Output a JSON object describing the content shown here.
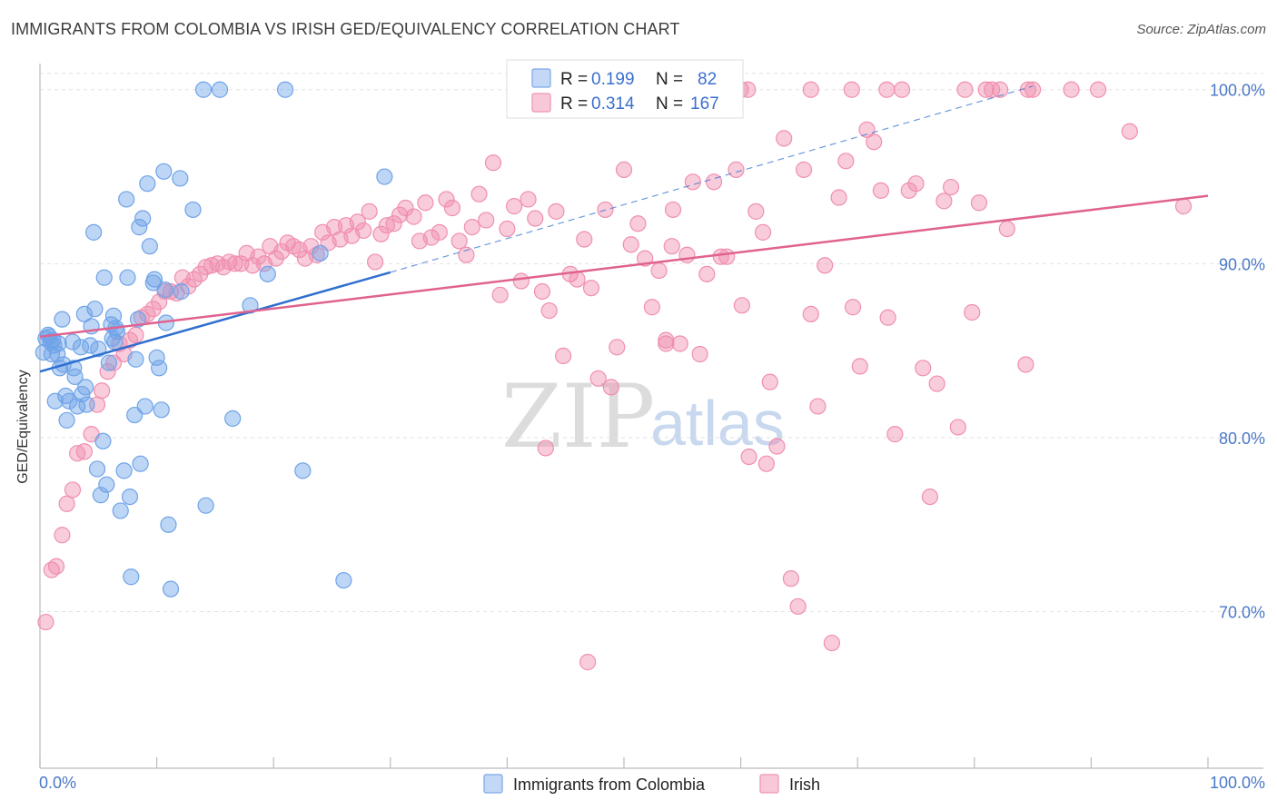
{
  "header": {
    "title": "IMMIGRANTS FROM COLOMBIA VS IRISH GED/EQUIVALENCY CORRELATION CHART",
    "source": "Source: ZipAtlas.com"
  },
  "watermark": {
    "zip": "ZIP",
    "atlas": "atlas"
  },
  "legend_top": {
    "rows": [
      {
        "r_label": "R = ",
        "r_value": "0.199",
        "n_label": "N = ",
        "n_value": "82"
      },
      {
        "r_label": "R = ",
        "r_value": "0.314",
        "n_label": "N = ",
        "n_value": "167"
      }
    ]
  },
  "chart_data": {
    "type": "scatter",
    "title": "IMMIGRANTS FROM COLOMBIA VS IRISH GED/EQUIVALENCY CORRELATION CHART",
    "xlabel": "",
    "ylabel": "GED/Equivalency",
    "xlim": [
      0,
      100
    ],
    "ylim": [
      61,
      101.5
    ],
    "x_tick_labels": [
      "0.0%",
      "100.0%"
    ],
    "y_ticks": [
      70,
      80,
      90,
      100
    ],
    "y_tick_labels": [
      "70.0%",
      "80.0%",
      "90.0%",
      "100.0%"
    ],
    "grid": true,
    "colors": {
      "colombia": "#6fa3e8",
      "irish": "#f08fb0",
      "colombia_line": "#2f6fcf",
      "irish_line": "#e0628f"
    },
    "series": [
      {
        "name": "Immigrants from Colombia",
        "r": 0.199,
        "n": 82,
        "trend": {
          "x": [
            0,
            30
          ],
          "y": [
            83.8,
            89.5
          ]
        },
        "trend_extension": {
          "x": [
            30,
            85
          ],
          "y": [
            89.5,
            100.2
          ]
        },
        "points": [
          [
            0.3,
            84.9
          ],
          [
            0.5,
            85.7
          ],
          [
            0.7,
            85.9
          ],
          [
            0.9,
            85.5
          ],
          [
            1.0,
            84.8
          ],
          [
            1.1,
            85.6
          ],
          [
            1.3,
            82.1
          ],
          [
            1.5,
            84.8
          ],
          [
            1.6,
            85.4
          ],
          [
            1.7,
            84.0
          ],
          [
            1.9,
            86.8
          ],
          [
            2.0,
            84.2
          ],
          [
            2.2,
            82.4
          ],
          [
            2.3,
            81.0
          ],
          [
            2.5,
            82.1
          ],
          [
            2.8,
            85.5
          ],
          [
            2.9,
            84.0
          ],
          [
            3.0,
            83.5
          ],
          [
            3.2,
            81.8
          ],
          [
            3.5,
            85.2
          ],
          [
            3.6,
            82.5
          ],
          [
            3.8,
            87.1
          ],
          [
            3.9,
            82.9
          ],
          [
            4.0,
            81.9
          ],
          [
            4.3,
            85.3
          ],
          [
            4.4,
            86.4
          ],
          [
            4.6,
            91.8
          ],
          [
            4.7,
            87.4
          ],
          [
            4.9,
            78.2
          ],
          [
            5.0,
            85.1
          ],
          [
            5.2,
            76.7
          ],
          [
            5.4,
            79.8
          ],
          [
            5.5,
            89.2
          ],
          [
            5.7,
            77.3
          ],
          [
            5.9,
            84.3
          ],
          [
            6.1,
            86.5
          ],
          [
            6.2,
            85.7
          ],
          [
            6.3,
            87.0
          ],
          [
            6.4,
            85.5
          ],
          [
            6.5,
            86.3
          ],
          [
            6.6,
            86.1
          ],
          [
            6.9,
            75.8
          ],
          [
            7.2,
            78.1
          ],
          [
            7.4,
            93.7
          ],
          [
            7.5,
            89.2
          ],
          [
            7.7,
            76.6
          ],
          [
            7.8,
            72.0
          ],
          [
            8.1,
            81.3
          ],
          [
            8.2,
            84.5
          ],
          [
            8.4,
            86.8
          ],
          [
            8.5,
            92.1
          ],
          [
            8.6,
            78.5
          ],
          [
            8.8,
            92.6
          ],
          [
            9.0,
            81.8
          ],
          [
            9.2,
            94.6
          ],
          [
            9.4,
            91.0
          ],
          [
            9.7,
            88.9
          ],
          [
            9.8,
            89.1
          ],
          [
            10.0,
            84.6
          ],
          [
            10.2,
            84.0
          ],
          [
            10.4,
            81.6
          ],
          [
            10.6,
            95.3
          ],
          [
            10.7,
            88.5
          ],
          [
            10.8,
            86.6
          ],
          [
            11.0,
            75.0
          ],
          [
            11.2,
            71.3
          ],
          [
            12.0,
            94.9
          ],
          [
            12.1,
            88.4
          ],
          [
            13.1,
            93.1
          ],
          [
            14.2,
            76.1
          ],
          [
            14.0,
            100.0
          ],
          [
            15.4,
            100.0
          ],
          [
            16.5,
            81.1
          ],
          [
            18.0,
            87.6
          ],
          [
            19.5,
            89.4
          ],
          [
            21.0,
            100.0
          ],
          [
            22.5,
            78.1
          ],
          [
            24.0,
            90.6
          ],
          [
            26.0,
            71.8
          ],
          [
            29.5,
            95.0
          ],
          [
            0.8,
            85.8
          ],
          [
            1.2,
            85.3
          ]
        ]
      },
      {
        "name": "Irish",
        "r": 0.314,
        "n": 167,
        "trend": {
          "x": [
            0,
            100
          ],
          "y": [
            85.8,
            93.9
          ]
        },
        "points": [
          [
            0.5,
            69.4
          ],
          [
            1.0,
            72.4
          ],
          [
            1.4,
            72.6
          ],
          [
            1.9,
            74.4
          ],
          [
            2.3,
            76.2
          ],
          [
            2.8,
            77.0
          ],
          [
            3.2,
            79.1
          ],
          [
            3.8,
            79.2
          ],
          [
            4.4,
            80.2
          ],
          [
            4.9,
            81.9
          ],
          [
            5.3,
            82.7
          ],
          [
            5.8,
            83.8
          ],
          [
            6.3,
            84.3
          ],
          [
            6.8,
            85.4
          ],
          [
            7.2,
            84.8
          ],
          [
            7.7,
            85.6
          ],
          [
            8.2,
            85.9
          ],
          [
            8.7,
            86.9
          ],
          [
            9.2,
            87.1
          ],
          [
            9.7,
            87.4
          ],
          [
            10.2,
            87.8
          ],
          [
            10.7,
            88.4
          ],
          [
            11.2,
            88.4
          ],
          [
            11.7,
            88.3
          ],
          [
            12.2,
            89.2
          ],
          [
            12.7,
            88.7
          ],
          [
            13.2,
            89.1
          ],
          [
            13.7,
            89.4
          ],
          [
            14.2,
            89.8
          ],
          [
            14.7,
            89.9
          ],
          [
            15.2,
            90.0
          ],
          [
            15.7,
            89.8
          ],
          [
            16.2,
            90.1
          ],
          [
            16.7,
            90.0
          ],
          [
            17.2,
            90.0
          ],
          [
            17.7,
            90.6
          ],
          [
            18.2,
            89.9
          ],
          [
            18.7,
            90.4
          ],
          [
            19.2,
            90.0
          ],
          [
            19.7,
            91.0
          ],
          [
            20.2,
            90.3
          ],
          [
            20.7,
            90.7
          ],
          [
            21.2,
            91.2
          ],
          [
            21.7,
            91.0
          ],
          [
            22.2,
            90.8
          ],
          [
            22.7,
            90.3
          ],
          [
            23.2,
            91.0
          ],
          [
            23.7,
            90.5
          ],
          [
            24.2,
            91.8
          ],
          [
            24.7,
            91.2
          ],
          [
            25.2,
            92.1
          ],
          [
            25.7,
            91.4
          ],
          [
            26.2,
            92.2
          ],
          [
            26.7,
            91.6
          ],
          [
            27.2,
            92.4
          ],
          [
            27.7,
            91.9
          ],
          [
            28.2,
            93.0
          ],
          [
            28.7,
            90.1
          ],
          [
            29.2,
            91.7
          ],
          [
            29.7,
            92.2
          ],
          [
            30.3,
            92.3
          ],
          [
            30.8,
            92.8
          ],
          [
            31.3,
            93.2
          ],
          [
            32.0,
            92.7
          ],
          [
            32.5,
            91.3
          ],
          [
            33.0,
            93.5
          ],
          [
            33.5,
            91.5
          ],
          [
            34.2,
            91.8
          ],
          [
            34.8,
            93.7
          ],
          [
            35.3,
            93.2
          ],
          [
            35.9,
            91.3
          ],
          [
            36.5,
            90.5
          ],
          [
            37.0,
            92.1
          ],
          [
            37.6,
            94.0
          ],
          [
            38.2,
            92.5
          ],
          [
            38.8,
            95.8
          ],
          [
            39.4,
            88.2
          ],
          [
            40.0,
            92.0
          ],
          [
            40.6,
            93.3
          ],
          [
            41.2,
            89.0
          ],
          [
            41.8,
            93.7
          ],
          [
            42.4,
            92.6
          ],
          [
            43.0,
            88.4
          ],
          [
            43.6,
            87.3
          ],
          [
            44.2,
            93.0
          ],
          [
            44.8,
            84.7
          ],
          [
            45.4,
            89.4
          ],
          [
            46.0,
            89.1
          ],
          [
            46.6,
            91.4
          ],
          [
            47.2,
            88.6
          ],
          [
            47.8,
            83.4
          ],
          [
            48.4,
            93.1
          ],
          [
            48.9,
            82.9
          ],
          [
            49.4,
            85.2
          ],
          [
            50.0,
            95.4
          ],
          [
            50.6,
            91.1
          ],
          [
            51.2,
            92.3
          ],
          [
            51.8,
            90.3
          ],
          [
            52.4,
            87.5
          ],
          [
            53.0,
            89.6
          ],
          [
            53.6,
            85.4
          ],
          [
            54.2,
            93.1
          ],
          [
            54.8,
            85.4
          ],
          [
            55.4,
            90.5
          ],
          [
            55.9,
            94.7
          ],
          [
            56.5,
            84.8
          ],
          [
            57.1,
            89.4
          ],
          [
            57.7,
            94.7
          ],
          [
            58.3,
            90.4
          ],
          [
            58.8,
            90.4
          ],
          [
            59.6,
            95.4
          ],
          [
            60.1,
            87.6
          ],
          [
            60.7,
            78.9
          ],
          [
            61.3,
            93.0
          ],
          [
            61.9,
            91.8
          ],
          [
            62.5,
            83.2
          ],
          [
            63.1,
            79.5
          ],
          [
            63.7,
            97.2
          ],
          [
            64.3,
            71.9
          ],
          [
            64.9,
            70.3
          ],
          [
            65.4,
            95.4
          ],
          [
            66.0,
            87.1
          ],
          [
            66.6,
            81.8
          ],
          [
            67.2,
            89.9
          ],
          [
            67.8,
            68.2
          ],
          [
            68.4,
            93.8
          ],
          [
            69.0,
            95.9
          ],
          [
            69.6,
            87.5
          ],
          [
            70.2,
            84.1
          ],
          [
            70.8,
            97.7
          ],
          [
            71.4,
            97.0
          ],
          [
            72.0,
            94.2
          ],
          [
            72.6,
            86.9
          ],
          [
            73.2,
            80.2
          ],
          [
            73.8,
            100.0
          ],
          [
            74.4,
            94.2
          ],
          [
            75.0,
            94.6
          ],
          [
            75.6,
            84.0
          ],
          [
            76.2,
            76.6
          ],
          [
            76.8,
            83.1
          ],
          [
            77.4,
            93.6
          ],
          [
            78.0,
            94.4
          ],
          [
            78.6,
            80.6
          ],
          [
            79.2,
            100.0
          ],
          [
            79.8,
            87.2
          ],
          [
            80.4,
            93.5
          ],
          [
            81.0,
            100.0
          ],
          [
            81.5,
            100.0
          ],
          [
            82.2,
            100.0
          ],
          [
            82.8,
            92.0
          ],
          [
            84.4,
            84.2
          ],
          [
            85.0,
            100.0
          ],
          [
            88.3,
            100.0
          ],
          [
            90.6,
            100.0
          ],
          [
            93.3,
            97.6
          ],
          [
            97.9,
            93.3
          ],
          [
            60.0,
            100.0
          ],
          [
            66.0,
            100.0
          ],
          [
            69.5,
            100.0
          ],
          [
            72.5,
            100.0
          ],
          [
            46.9,
            67.1
          ],
          [
            62.2,
            78.5
          ],
          [
            43.3,
            79.4
          ],
          [
            54.1,
            91.0
          ],
          [
            53.6,
            85.6
          ],
          [
            60.6,
            100.0
          ],
          [
            84.6,
            100.0
          ]
        ]
      }
    ]
  },
  "legend_bottom": {
    "items": [
      {
        "label": "Immigrants from Colombia"
      },
      {
        "label": "Irish"
      }
    ]
  }
}
